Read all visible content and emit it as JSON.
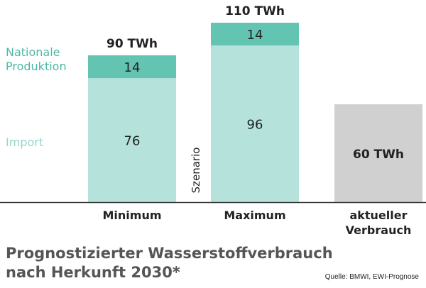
{
  "chart_data": {
    "type": "bar",
    "categories": [
      "Minimum",
      "Maximum",
      "aktueller Verbrauch"
    ],
    "category_labels": [
      [
        "Minimum"
      ],
      [
        "Maximum"
      ],
      [
        "aktueller",
        "Verbrauch"
      ]
    ],
    "series": [
      {
        "name": "Import",
        "values": [
          76,
          96,
          null
        ],
        "color": "#b5e3db"
      },
      {
        "name": "Nationale Produktion",
        "values": [
          14,
          14,
          null
        ],
        "color": "#64c4b2"
      },
      {
        "values": [
          null,
          null,
          60
        ],
        "color": "#d0d0d0"
      }
    ],
    "totals": [
      90,
      110,
      60
    ],
    "total_labels": [
      "90 TWh",
      "110 TWh",
      "60 TWh"
    ],
    "segment_labels": {
      "Import": [
        "76",
        "96",
        ""
      ],
      "Nationale Produktion": [
        "14",
        "14",
        ""
      ]
    },
    "legend": [
      "Nationale Produktion",
      "Import"
    ],
    "legend_lines": {
      "national": "Nationale Produktion",
      "import": "Import"
    },
    "group_annotation": "Szenario",
    "title": "Prognostizierter Wasserstoffverbrauch nach Herkunft 2030*",
    "title_lines": [
      "Prognostizierter Wasserstoffverbrauch",
      "nach Herkunft 2030*"
    ],
    "source": "Quelle: BMWI, EWI-Prognose",
    "unit": "TWh",
    "ylim": [
      0,
      110
    ],
    "grid": false
  }
}
